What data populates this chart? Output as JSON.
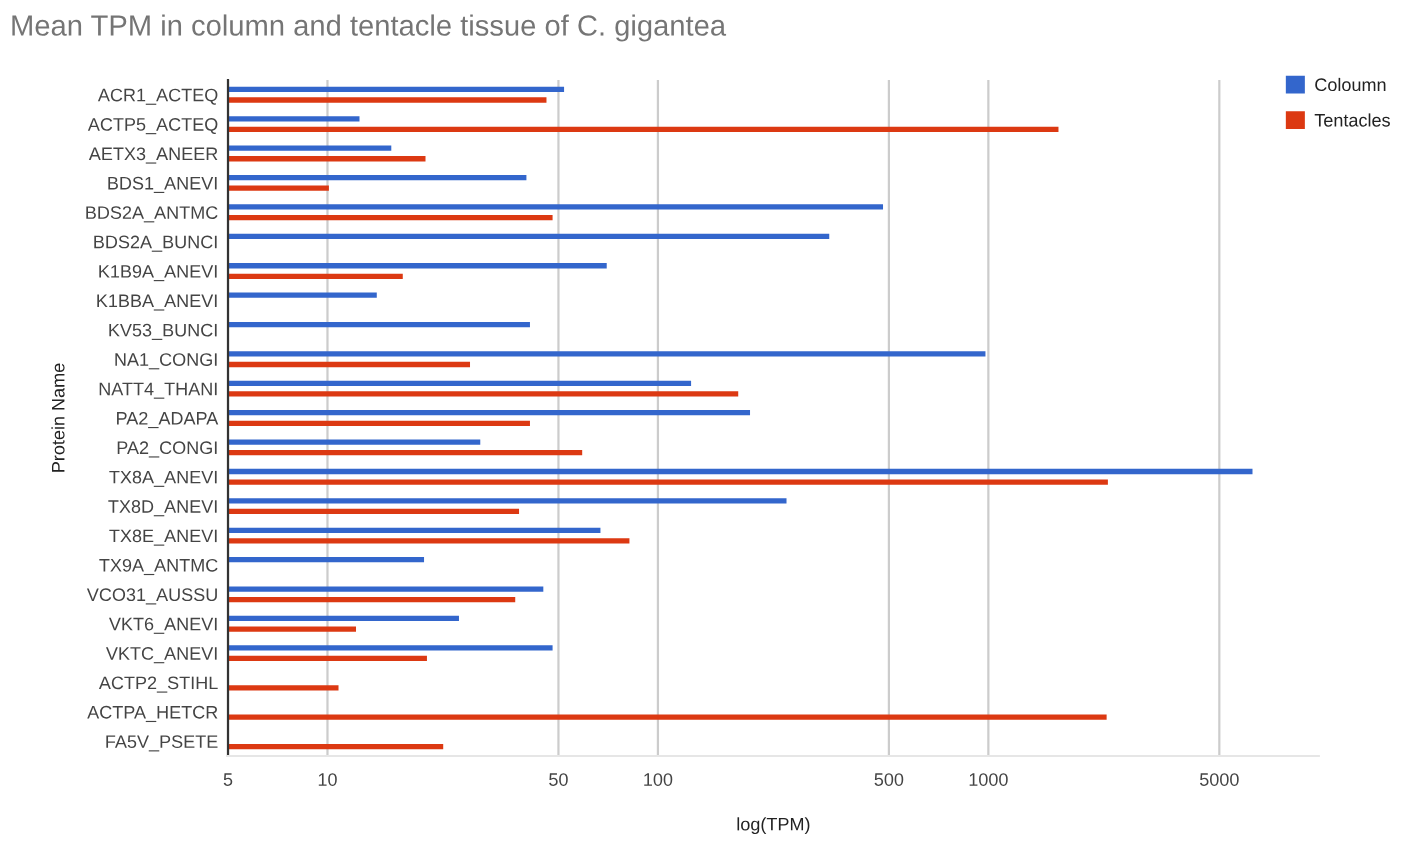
{
  "chart_data": {
    "type": "bar",
    "orientation": "horizontal",
    "title": "Mean TPM in column and tentacle tissue of C. gigantea",
    "xlabel": "log(TPM)",
    "ylabel": "Protein Name",
    "categories": [
      "ACR1_ACTEQ",
      "ACTP5_ACTEQ",
      "AETX3_ANEER",
      "BDS1_ANEVI",
      "BDS2A_ANTMC",
      "BDS2A_BUNCI",
      "K1B9A_ANEVI",
      "K1BBA_ANEVI",
      "KV53_BUNCI",
      "NA1_CONGI",
      "NATT4_THANI",
      "PA2_ADAPA",
      "PA2_CONGI",
      "TX8A_ANEVI",
      "TX8D_ANEVI",
      "TX8E_ANEVI",
      "TX9A_ANTMC",
      "VCO31_AUSSU",
      "VKT6_ANEVI",
      "VKTC_ANEVI",
      "ACTP2_STIHL",
      "ACTPA_HETCR",
      "FA5V_PSETE"
    ],
    "series": [
      {
        "name": "Coloumn",
        "color": "#3366cc",
        "values": [
          52,
          12.5,
          15.6,
          40,
          480,
          330,
          70,
          14.1,
          41,
          980,
          126,
          190,
          29,
          6300,
          245,
          67,
          19.6,
          45,
          25,
          48,
          null,
          null,
          null
        ]
      },
      {
        "name": "Tentacles",
        "color": "#dc3912",
        "values": [
          46,
          1630,
          19.8,
          10.1,
          48,
          null,
          16.9,
          null,
          null,
          27,
          175,
          41,
          59,
          2300,
          38,
          82,
          null,
          37,
          12.2,
          20,
          10.8,
          2280,
          22.4
        ]
      }
    ],
    "log": "x",
    "xlim": [
      5,
      10000
    ],
    "xticks": [
      5,
      10,
      50,
      100,
      500,
      1000,
      5000
    ],
    "grid": "x",
    "legend": "top right"
  }
}
